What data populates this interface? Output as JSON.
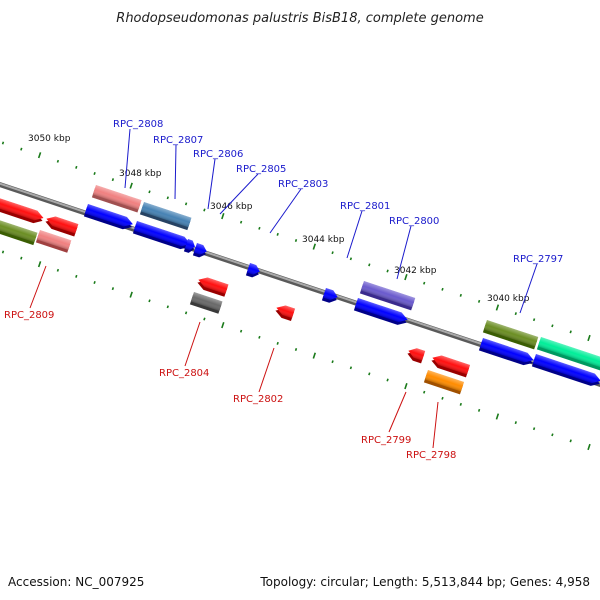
{
  "title": "Rhodopseudomonas palustris BisB18, complete genome",
  "footer": {
    "accession": "Accession: NC_007925",
    "topology": "Topology: circular; Length: 5,513,844 bp; Genes: 4,958"
  },
  "colors": {
    "forward_label": "#1a1acc",
    "reverse_label": "#cc1111",
    "backbone": "#808080",
    "tick": "#1a7a1a"
  },
  "ticks": [
    "3050 kbp",
    "3048 kbp",
    "3046 kbp",
    "3044 kbp",
    "3042 kbp",
    "3040 kbp"
  ],
  "forward_genes": [
    "RPC_2808",
    "RPC_2807",
    "RPC_2806",
    "RPC_2805",
    "RPC_2803",
    "RPC_2801",
    "RPC_2800",
    "RPC_2797"
  ],
  "reverse_genes": [
    "RPC_2809",
    "RPC_2804",
    "RPC_2802",
    "RPC_2799",
    "RPC_2798"
  ]
}
